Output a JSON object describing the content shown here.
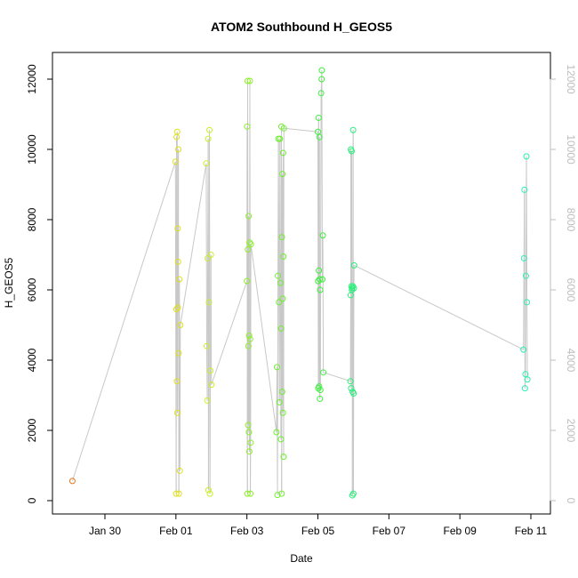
{
  "chart_data": {
    "type": "scatter",
    "title": "ATOM2 Southbound H_GEOS5",
    "xlabel": "Date",
    "ylabel": "H_GEOS5",
    "x_axis_type": "date",
    "xlim": [
      "2017-01-28",
      "2017-02-11"
    ],
    "ylim": [
      0,
      12500
    ],
    "x_ticks": [
      {
        "date": "2017-01-30",
        "label": "Jan 30"
      },
      {
        "date": "2017-02-01",
        "label": "Feb 01"
      },
      {
        "date": "2017-02-03",
        "label": "Feb 03"
      },
      {
        "date": "2017-02-05",
        "label": "Feb 05"
      },
      {
        "date": "2017-02-07",
        "label": "Feb 07"
      },
      {
        "date": "2017-02-09",
        "label": "Feb 09"
      },
      {
        "date": "2017-02-11",
        "label": "Feb 11"
      }
    ],
    "y_ticks": [
      0,
      2000,
      4000,
      6000,
      8000,
      10000,
      12000
    ],
    "y_tick_labels": [
      "0",
      "2000",
      "4000",
      "6000",
      "8000",
      "10000",
      "12000"
    ],
    "right_axis": true,
    "right_axis_color": "#bdbdbd",
    "line_color": "#c8c8c8",
    "marker": "open-circle",
    "grid": false,
    "legend": "none",
    "color_by": "time",
    "points": [
      {
        "x": "2017-01-29 02:00",
        "y": 560,
        "color": "#e8761c"
      },
      {
        "x": "2017-01-31 23:40",
        "y": 9650,
        "color": "#e0e01a"
      },
      {
        "x": "2017-02-01 00:10",
        "y": 200,
        "color": "#e0e01a"
      },
      {
        "x": "2017-02-01 00:20",
        "y": 5450,
        "color": "#e0e01a"
      },
      {
        "x": "2017-02-01 00:30",
        "y": 10350,
        "color": "#e0e01a"
      },
      {
        "x": "2017-02-01 00:40",
        "y": 3400,
        "color": "#e0e01a"
      },
      {
        "x": "2017-02-01 00:50",
        "y": 10500,
        "color": "#e0e01a"
      },
      {
        "x": "2017-02-01 01:00",
        "y": 2500,
        "color": "#e0e01a"
      },
      {
        "x": "2017-02-01 01:10",
        "y": 7750,
        "color": "#e0e01a"
      },
      {
        "x": "2017-02-01 01:20",
        "y": 5500,
        "color": "#e0e01a"
      },
      {
        "x": "2017-02-01 01:30",
        "y": 6800,
        "color": "#e0e01a"
      },
      {
        "x": "2017-02-01 01:40",
        "y": 10000,
        "color": "#e0e01a"
      },
      {
        "x": "2017-02-01 01:50",
        "y": 4200,
        "color": "#e0e01a"
      },
      {
        "x": "2017-02-01 02:00",
        "y": 200,
        "color": "#e0e01a"
      },
      {
        "x": "2017-02-01 02:20",
        "y": 6300,
        "color": "#e0e01a"
      },
      {
        "x": "2017-02-01 02:40",
        "y": 850,
        "color": "#e0e01a"
      },
      {
        "x": "2017-02-01 03:00",
        "y": 5000,
        "color": "#e0e01a"
      },
      {
        "x": "2017-02-01 20:30",
        "y": 9600,
        "color": "#c8f028"
      },
      {
        "x": "2017-02-01 20:50",
        "y": 4400,
        "color": "#c8f028"
      },
      {
        "x": "2017-02-01 21:10",
        "y": 2850,
        "color": "#c8f028"
      },
      {
        "x": "2017-02-01 21:30",
        "y": 6900,
        "color": "#c8f028"
      },
      {
        "x": "2017-02-01 21:50",
        "y": 10300,
        "color": "#c8f028"
      },
      {
        "x": "2017-02-01 22:00",
        "y": 300,
        "color": "#c8f028"
      },
      {
        "x": "2017-02-01 22:20",
        "y": 5650,
        "color": "#c8f028"
      },
      {
        "x": "2017-02-01 22:40",
        "y": 10550,
        "color": "#c8f028"
      },
      {
        "x": "2017-02-01 23:00",
        "y": 200,
        "color": "#c8f028"
      },
      {
        "x": "2017-02-01 23:20",
        "y": 3700,
        "color": "#c8f028"
      },
      {
        "x": "2017-02-01 23:40",
        "y": 7000,
        "color": "#c8f028"
      },
      {
        "x": "2017-02-02 00:00",
        "y": 3300,
        "color": "#c8f028"
      },
      {
        "x": "2017-02-03 00:00",
        "y": 6250,
        "color": "#8cf028"
      },
      {
        "x": "2017-02-03 00:10",
        "y": 10650,
        "color": "#8cf028"
      },
      {
        "x": "2017-02-03 00:20",
        "y": 200,
        "color": "#8cf028"
      },
      {
        "x": "2017-02-03 00:30",
        "y": 11950,
        "color": "#8cf028"
      },
      {
        "x": "2017-02-03 00:40",
        "y": 7150,
        "color": "#8cf028"
      },
      {
        "x": "2017-02-03 00:50",
        "y": 2150,
        "color": "#8cf028"
      },
      {
        "x": "2017-02-03 01:00",
        "y": 4400,
        "color": "#8cf028"
      },
      {
        "x": "2017-02-03 01:10",
        "y": 8100,
        "color": "#8cf028"
      },
      {
        "x": "2017-02-03 01:20",
        "y": 1950,
        "color": "#8cf028"
      },
      {
        "x": "2017-02-03 01:30",
        "y": 4700,
        "color": "#8cf028"
      },
      {
        "x": "2017-02-03 01:40",
        "y": 1400,
        "color": "#8cf028"
      },
      {
        "x": "2017-02-03 01:50",
        "y": 7350,
        "color": "#8cf028"
      },
      {
        "x": "2017-02-03 02:00",
        "y": 11950,
        "color": "#8cf028"
      },
      {
        "x": "2017-02-03 02:10",
        "y": 4600,
        "color": "#8cf028"
      },
      {
        "x": "2017-02-03 02:20",
        "y": 200,
        "color": "#8cf028"
      },
      {
        "x": "2017-02-03 02:30",
        "y": 1650,
        "color": "#8cf028"
      },
      {
        "x": "2017-02-03 02:40",
        "y": 7300,
        "color": "#8cf028"
      },
      {
        "x": "2017-02-03 20:00",
        "y": 1950,
        "color": "#6ef02e"
      },
      {
        "x": "2017-02-03 20:20",
        "y": 3800,
        "color": "#6ef02e"
      },
      {
        "x": "2017-02-03 20:40",
        "y": 160,
        "color": "#6ef02e"
      },
      {
        "x": "2017-02-03 21:00",
        "y": 6400,
        "color": "#6ef02e"
      },
      {
        "x": "2017-02-03 21:20",
        "y": 10300,
        "color": "#6ef02e"
      },
      {
        "x": "2017-02-03 21:40",
        "y": 5650,
        "color": "#6ef02e"
      },
      {
        "x": "2017-02-03 22:00",
        "y": 2800,
        "color": "#6ef02e"
      },
      {
        "x": "2017-02-03 22:20",
        "y": 10300,
        "color": "#6ef02e"
      },
      {
        "x": "2017-02-03 22:40",
        "y": 6200,
        "color": "#6ef02e"
      },
      {
        "x": "2017-02-03 23:00",
        "y": 1750,
        "color": "#6ef02e"
      },
      {
        "x": "2017-02-03 23:10",
        "y": 4900,
        "color": "#6ef02e"
      },
      {
        "x": "2017-02-03 23:20",
        "y": 10650,
        "color": "#6ef02e"
      },
      {
        "x": "2017-02-03 23:30",
        "y": 200,
        "color": "#6ef02e"
      },
      {
        "x": "2017-02-03 23:40",
        "y": 7500,
        "color": "#6ef02e"
      },
      {
        "x": "2017-02-03 23:50",
        "y": 3100,
        "color": "#6ef02e"
      },
      {
        "x": "2017-02-04 00:00",
        "y": 9300,
        "color": "#6ef02e"
      },
      {
        "x": "2017-02-04 00:10",
        "y": 5750,
        "color": "#6ef02e"
      },
      {
        "x": "2017-02-04 00:20",
        "y": 2500,
        "color": "#6ef02e"
      },
      {
        "x": "2017-02-04 00:30",
        "y": 9900,
        "color": "#6ef02e"
      },
      {
        "x": "2017-02-04 00:40",
        "y": 6950,
        "color": "#6ef02e"
      },
      {
        "x": "2017-02-04 00:50",
        "y": 1250,
        "color": "#6ef02e"
      },
      {
        "x": "2017-02-04 01:00",
        "y": 10600,
        "color": "#6ef02e"
      },
      {
        "x": "2017-02-05 00:00",
        "y": 10500,
        "color": "#3cf03c"
      },
      {
        "x": "2017-02-05 00:10",
        "y": 6250,
        "color": "#3cf03c"
      },
      {
        "x": "2017-02-05 00:20",
        "y": 3200,
        "color": "#3cf03c"
      },
      {
        "x": "2017-02-05 00:30",
        "y": 10900,
        "color": "#3cf03c"
      },
      {
        "x": "2017-02-05 00:40",
        "y": 6550,
        "color": "#3cf03c"
      },
      {
        "x": "2017-02-05 00:50",
        "y": 3250,
        "color": "#3cf03c"
      },
      {
        "x": "2017-02-05 01:00",
        "y": 10350,
        "color": "#3cf03c"
      },
      {
        "x": "2017-02-05 01:10",
        "y": 6300,
        "color": "#3cf03c"
      },
      {
        "x": "2017-02-05 01:20",
        "y": 2900,
        "color": "#3cf03c"
      },
      {
        "x": "2017-02-05 01:30",
        "y": 6000,
        "color": "#3cf03c"
      },
      {
        "x": "2017-02-05 01:40",
        "y": 3150,
        "color": "#3cf03c"
      },
      {
        "x": "2017-02-05 02:10",
        "y": 11600,
        "color": "#3cf03c"
      },
      {
        "x": "2017-02-05 02:30",
        "y": 12000,
        "color": "#3cf03c"
      },
      {
        "x": "2017-02-05 02:40",
        "y": 12250,
        "color": "#3cf03c"
      },
      {
        "x": "2017-02-05 03:00",
        "y": 6300,
        "color": "#3cf03c"
      },
      {
        "x": "2017-02-05 03:20",
        "y": 7550,
        "color": "#3cf03c"
      },
      {
        "x": "2017-02-05 03:40",
        "y": 3650,
        "color": "#3cf03c"
      },
      {
        "x": "2017-02-05 22:00",
        "y": 3400,
        "color": "#28f07a"
      },
      {
        "x": "2017-02-05 22:10",
        "y": 5850,
        "color": "#28f07a"
      },
      {
        "x": "2017-02-05 22:20",
        "y": 10000,
        "color": "#28f07a"
      },
      {
        "x": "2017-02-05 22:30",
        "y": 3200,
        "color": "#28f07a"
      },
      {
        "x": "2017-02-05 22:40",
        "y": 6100,
        "color": "#28f07a"
      },
      {
        "x": "2017-02-05 22:50",
        "y": 9950,
        "color": "#28f07a"
      },
      {
        "x": "2017-02-05 23:00",
        "y": 6000,
        "color": "#28f07a"
      },
      {
        "x": "2017-02-05 23:10",
        "y": 6050,
        "color": "#28f07a"
      },
      {
        "x": "2017-02-05 23:20",
        "y": 150,
        "color": "#28f07a"
      },
      {
        "x": "2017-02-05 23:30",
        "y": 3100,
        "color": "#28f07a"
      },
      {
        "x": "2017-02-05 23:40",
        "y": 6100,
        "color": "#28f07a"
      },
      {
        "x": "2017-02-05 23:50",
        "y": 10550,
        "color": "#28f07a"
      },
      {
        "x": "2017-02-06 00:00",
        "y": 200,
        "color": "#28f07a"
      },
      {
        "x": "2017-02-06 00:10",
        "y": 3050,
        "color": "#28f07a"
      },
      {
        "x": "2017-02-06 00:20",
        "y": 6050,
        "color": "#28f07a"
      },
      {
        "x": "2017-02-06 00:30",
        "y": 6700,
        "color": "#28f07a"
      },
      {
        "x": "2017-02-10 19:00",
        "y": 4300,
        "color": "#28f0b4"
      },
      {
        "x": "2017-02-10 19:20",
        "y": 6900,
        "color": "#28f0b4"
      },
      {
        "x": "2017-02-10 19:40",
        "y": 8850,
        "color": "#28f0b4"
      },
      {
        "x": "2017-02-10 20:00",
        "y": 3200,
        "color": "#28f0b4"
      },
      {
        "x": "2017-02-10 20:20",
        "y": 3600,
        "color": "#28f0b4"
      },
      {
        "x": "2017-02-10 20:40",
        "y": 6400,
        "color": "#28f0b4"
      },
      {
        "x": "2017-02-10 21:00",
        "y": 9800,
        "color": "#28f0b4"
      },
      {
        "x": "2017-02-10 21:20",
        "y": 5650,
        "color": "#28f0b4"
      },
      {
        "x": "2017-02-10 21:40",
        "y": 3450,
        "color": "#28f0b4"
      }
    ]
  }
}
